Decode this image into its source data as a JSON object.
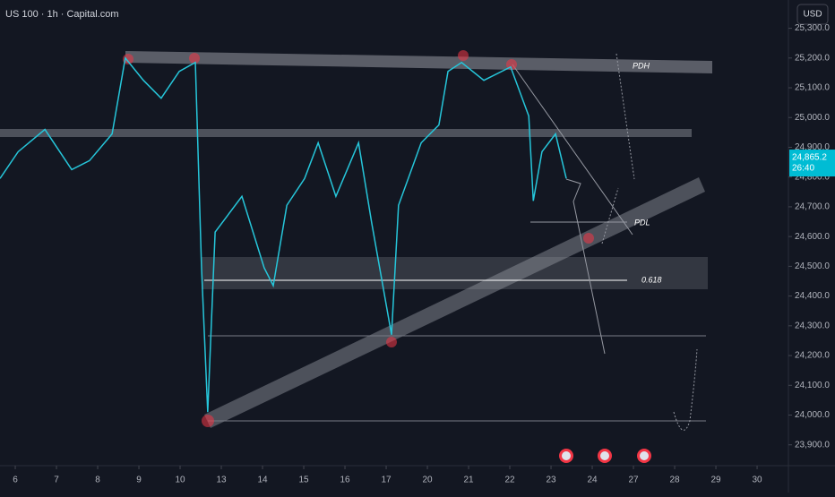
{
  "chart_data": {
    "type": "line",
    "title": "US 100 · 1h · Capital.com",
    "currency": "USD",
    "x": [
      -0.37,
      0.07,
      0.72,
      1.37,
      1.8,
      2.35,
      2.67,
      3.11,
      3.54,
      3.98,
      4.37,
      4.52,
      4.67,
      4.85,
      5.5,
      6.04,
      6.26,
      6.59,
      7.02,
      7.35,
      7.78,
      8.33,
      8.65,
      9.13,
      9.3,
      9.85,
      10.28,
      10.5,
      10.83,
      11.37,
      12.02,
      12.46,
      12.57,
      12.78,
      13.11,
      13.37
    ],
    "series": [
      {
        "color": "#26c6da",
        "values": [
          24795,
          24885,
          24960,
          24825,
          24855,
          24945,
          25200,
          25125,
          25065,
          25155,
          25185,
          24495,
          24010,
          24615,
          24735,
          24495,
          24435,
          24705,
          24795,
          24915,
          24735,
          24915,
          24645,
          24270,
          24705,
          24915,
          24975,
          25155,
          25185,
          25125,
          25170,
          25005,
          24720,
          24885,
          24945,
          24795
        ]
      }
    ],
    "xlim": [
      -0.37,
      18.76
    ],
    "xticks": [
      {
        "value": 0,
        "label": "6"
      },
      {
        "value": 1,
        "label": "7"
      },
      {
        "value": 2,
        "label": "8"
      },
      {
        "value": 3,
        "label": "9"
      },
      {
        "value": 4,
        "label": "10"
      },
      {
        "value": 5,
        "label": "13"
      },
      {
        "value": 6,
        "label": "14"
      },
      {
        "value": 7,
        "label": "15"
      },
      {
        "value": 8,
        "label": "16"
      },
      {
        "value": 9,
        "label": "17"
      },
      {
        "value": 10,
        "label": "20"
      },
      {
        "value": 11,
        "label": "21"
      },
      {
        "value": 12,
        "label": "22"
      },
      {
        "value": 13,
        "label": "23"
      },
      {
        "value": 14,
        "label": "24"
      },
      {
        "value": 15,
        "label": "27"
      },
      {
        "value": 16,
        "label": "28"
      },
      {
        "value": 17,
        "label": "29"
      },
      {
        "value": 18,
        "label": "30"
      }
    ],
    "ylim": [
      23830,
      25395
    ],
    "yticks": [
      {
        "value": 23900,
        "label": "23,900.0"
      },
      {
        "value": 24000,
        "label": "24,000.0"
      },
      {
        "value": 24100,
        "label": "24,100.0"
      },
      {
        "value": 24200,
        "label": "24,200.0"
      },
      {
        "value": 24300,
        "label": "24,300.0"
      },
      {
        "value": 24400,
        "label": "24,400.0"
      },
      {
        "value": 24500,
        "label": "24,500.0"
      },
      {
        "value": 24600,
        "label": "24,600.0"
      },
      {
        "value": 24700,
        "label": "24,700.0"
      },
      {
        "value": 24800,
        "label": "24,800.0"
      },
      {
        "value": 24900,
        "label": "24,900.0"
      },
      {
        "value": 25000,
        "label": "25,000.0"
      },
      {
        "value": 25100,
        "label": "25,100.0"
      },
      {
        "value": 25200,
        "label": "25,200.0"
      },
      {
        "value": 25300,
        "label": "25,300.0"
      }
    ],
    "last_price": {
      "value": 24865.2,
      "label": "24,865.2"
    },
    "countdown": "26:40",
    "annotations": [
      "PDH",
      "PDL",
      "0.618"
    ]
  }
}
